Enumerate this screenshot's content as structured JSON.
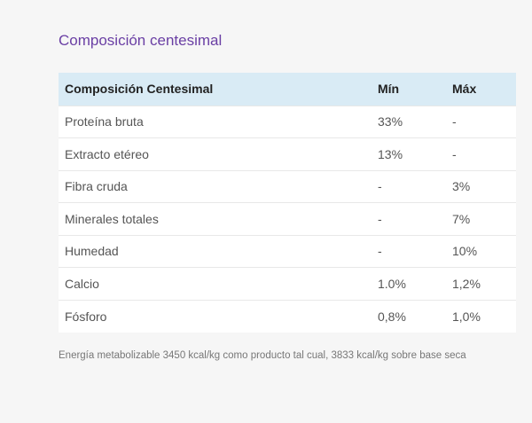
{
  "section": {
    "title": "Composición centesimal"
  },
  "table": {
    "headers": [
      "Composición Centesimal",
      "Mín",
      "Máx"
    ],
    "rows": [
      [
        "Proteína bruta",
        "33%",
        "-"
      ],
      [
        "Extracto etéreo",
        "13%",
        "-"
      ],
      [
        "Fibra cruda",
        "-",
        "3%"
      ],
      [
        "Minerales totales",
        "-",
        "7%"
      ],
      [
        "Humedad",
        "-",
        "10%"
      ],
      [
        "Calcio",
        "1.0%",
        "1,2%"
      ],
      [
        "Fósforo",
        "0,8%",
        "1,0%"
      ]
    ]
  },
  "footnote": "Energía metabolizable 3450 kcal/kg como producto tal cual, 3833 kcal/kg sobre base seca",
  "colors": {
    "title": "#6a3fa4",
    "header_bg": "#d9ebf5",
    "page_bg": "#f6f6f6",
    "row_bg": "#ffffff"
  }
}
